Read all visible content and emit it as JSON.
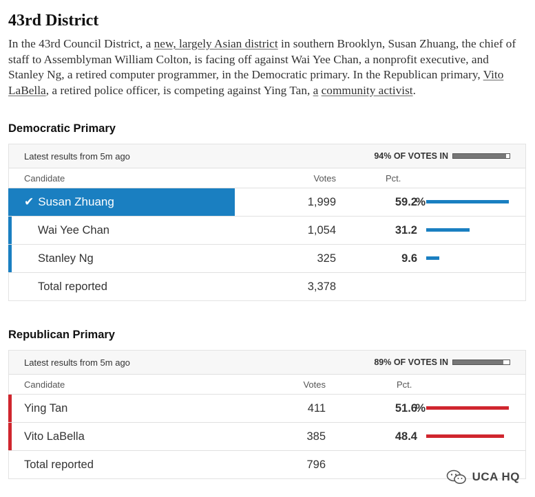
{
  "article": {
    "title": "43rd District",
    "desc_1": "In the 43rd Council District, a ",
    "link_1": "new, largely Asian district",
    "desc_2": " in southern Brooklyn, Susan Zhuang, the chief of staff to Assemblyman William Colton, is facing off against Wai Yee Chan, a nonprofit executive, and Stanley Ng, a retired computer programmer, in the Democratic primary. In the Republican primary, ",
    "link_2": "Vito LaBella",
    "desc_3": ", a retired police officer, is competing against Ying Tan, ",
    "link_3": "a",
    "link_4": "community activist",
    "desc_4": "."
  },
  "colors": {
    "dem": "#1a7fc1",
    "rep": "#d0262e"
  },
  "races": [
    {
      "title": "Democratic Primary",
      "latest": "Latest results from 5m ago",
      "votes_in_label": "94% OF VOTES IN",
      "votes_in_pct": 94,
      "col_candidate": "Candidate",
      "col_votes": "Votes",
      "col_pct": "Pct.",
      "candidates": [
        {
          "name": "Susan Zhuang",
          "votes": "1,999",
          "pct": "59.2",
          "pct_value": 59.2,
          "winner": true,
          "show_pct_sign": true
        },
        {
          "name": "Wai Yee Chan",
          "votes": "1,054",
          "pct": "31.2",
          "pct_value": 31.2,
          "winner": false,
          "show_pct_sign": false
        },
        {
          "name": "Stanley Ng",
          "votes": "325",
          "pct": "9.6",
          "pct_value": 9.6,
          "winner": false,
          "show_pct_sign": false
        }
      ],
      "total_label": "Total reported",
      "total_votes": "3,378"
    },
    {
      "title": "Republican Primary",
      "latest": "Latest results from 5m ago",
      "votes_in_label": "89% OF VOTES IN",
      "votes_in_pct": 89,
      "col_candidate": "Candidate",
      "col_votes": "Votes",
      "col_pct": "Pct.",
      "candidates": [
        {
          "name": "Ying Tan",
          "votes": "411",
          "pct": "51.6",
          "pct_value": 51.6,
          "winner": false,
          "show_pct_sign": true
        },
        {
          "name": "Vito LaBella",
          "votes": "385",
          "pct": "48.4",
          "pct_value": 48.4,
          "winner": false,
          "show_pct_sign": false
        }
      ],
      "total_label": "Total reported",
      "total_votes": "796"
    }
  ],
  "watermark": {
    "text": "UCA HQ",
    "icon": "wechat-icon"
  }
}
